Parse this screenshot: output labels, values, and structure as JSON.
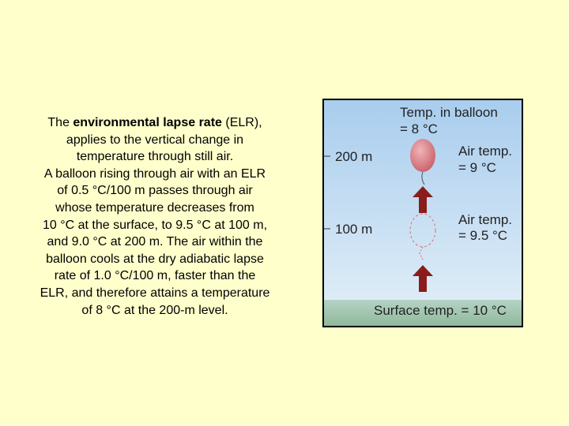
{
  "text": {
    "intro": [
      "The ",
      "environmental lapse rate",
      " (ELR),"
    ],
    "lines": [
      "applies to the vertical change in",
      "temperature through still air.",
      "A balloon rising through air with an ELR",
      "of 0.5 °C/100 m passes through air",
      "whose temperature decreases from",
      "10 °C at the surface, to 9.5 °C at 100 m,",
      "and 9.0 °C at 200 m. The air within the",
      "balloon cools at the dry adiabatic lapse",
      "rate of 1.0 °C/100 m, faster than the",
      "ELR, and therefore attains a temperature",
      "of 8 °C at the 200-m level."
    ]
  },
  "diagram": {
    "balloon_temp": [
      "Temp. in balloon",
      "= 8 °C"
    ],
    "heights": [
      "200 m",
      "100 m"
    ],
    "air_temp_200": [
      "Air temp.",
      "= 9 °C"
    ],
    "air_temp_100": [
      "Air temp.",
      "= 9.5 °C"
    ],
    "surface": "Surface temp. = 10 °C"
  }
}
